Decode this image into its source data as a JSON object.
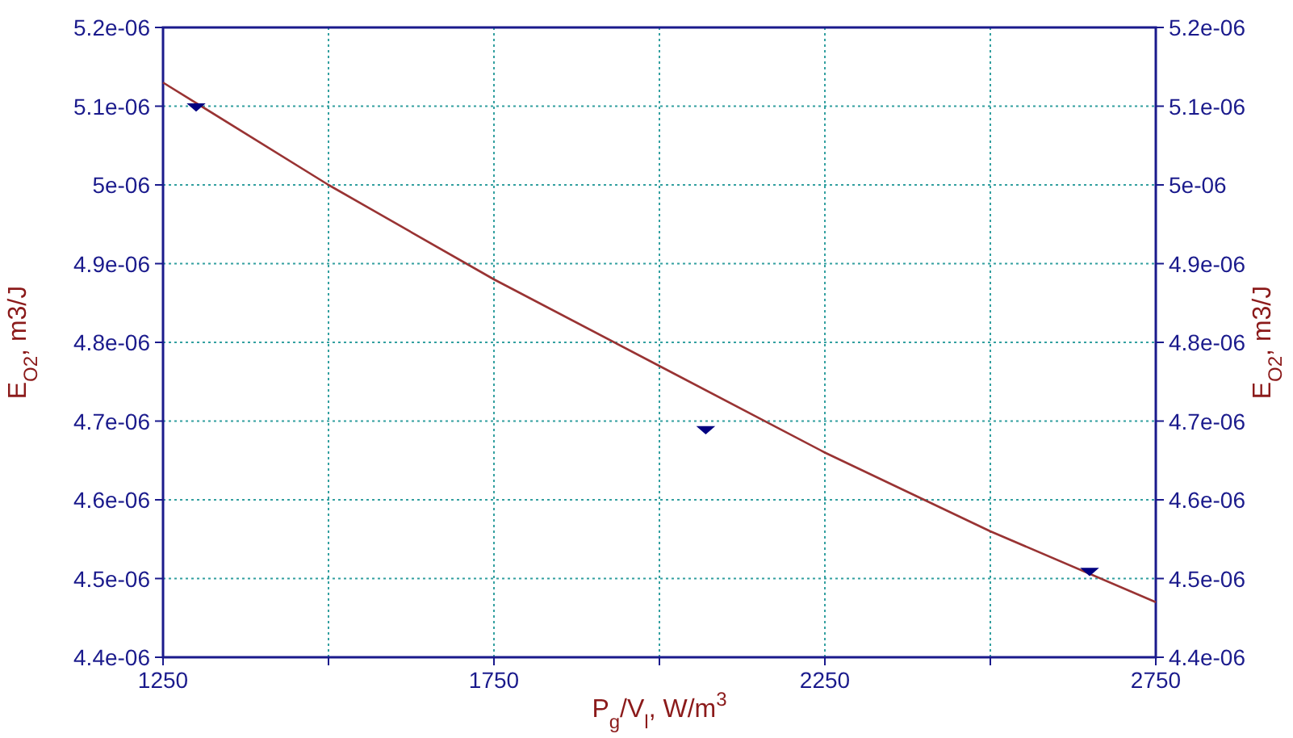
{
  "chart_data": {
    "type": "line",
    "xlabel": "P$_{g}$/V$_{l}$, W/m$^{3}$",
    "ylabel": "E$_{O2}$, m3/J",
    "y2label": "E$_{O2}$, m3/J",
    "xlim": [
      1250,
      2750
    ],
    "xticks": [
      1250,
      {
        "value": 1500,
        "label": null
      },
      1750,
      {
        "value": 2000,
        "label": null
      },
      2250,
      {
        "value": 2500,
        "label": null
      },
      2750
    ],
    "ylim": [
      4.4e-06,
      5.2e-06
    ],
    "yticks": [
      {
        "value": 4.4e-06,
        "label": "4.4e-06"
      },
      {
        "value": 4.5e-06,
        "label": "4.5e-06"
      },
      {
        "value": 4.6e-06,
        "label": "4.6e-06"
      },
      {
        "value": 4.7e-06,
        "label": "4.7e-06"
      },
      {
        "value": 4.8e-06,
        "label": "4.8e-06"
      },
      {
        "value": 4.9e-06,
        "label": "4.9e-06"
      },
      {
        "value": 5e-06,
        "label": "5e-06"
      },
      {
        "value": 5.1e-06,
        "label": "5.1e-06"
      },
      {
        "value": 5.2e-06,
        "label": "5.2e-06"
      }
    ],
    "y2lim": [
      4.4e-06,
      5.2e-06
    ],
    "y2ticks": [
      {
        "value": 4.4e-06,
        "label": "4.4e-06"
      },
      {
        "value": 4.5e-06,
        "label": "4.5e-06"
      },
      {
        "value": 4.6e-06,
        "label": "4.6e-06"
      },
      {
        "value": 4.7e-06,
        "label": "4.7e-06"
      },
      {
        "value": 4.8e-06,
        "label": "4.8e-06"
      },
      {
        "value": 4.9e-06,
        "label": "4.9e-06"
      },
      {
        "value": 5e-06,
        "label": "5e-06"
      },
      {
        "value": 5.1e-06,
        "label": "5.1e-06"
      },
      {
        "value": 5.2e-06,
        "label": "5.2e-06"
      }
    ],
    "grid": true,
    "series": [
      {
        "color": "#993333",
        "marker": "none",
        "line_style": "solid",
        "x": [
          1250,
          1500,
          1750,
          2000,
          2250,
          2500,
          2750
        ],
        "values": [
          5.13e-06,
          5e-06,
          4.88e-06,
          4.77e-06,
          4.66e-06,
          4.56e-06,
          4.47e-06
        ]
      },
      {
        "type": "scatter",
        "color": "#000080",
        "marker": "triangle",
        "x": [
          1300,
          2070,
          2650
        ],
        "values": [
          5.1e-06,
          4.69e-06,
          4.51e-06
        ]
      }
    ]
  }
}
